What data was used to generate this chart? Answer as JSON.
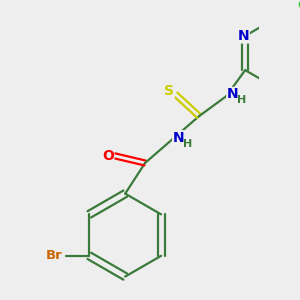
{
  "bg_color": "#eeeeee",
  "bond_color": "#3a7a3a",
  "bond_width": 1.6,
  "atom_colors": {
    "N": "#0000cc",
    "O": "#ff0000",
    "S": "#cccc00",
    "Cl": "#33cc33",
    "Br": "#cc6600",
    "C": "#3a7a3a",
    "H": "#3a7a3a"
  }
}
